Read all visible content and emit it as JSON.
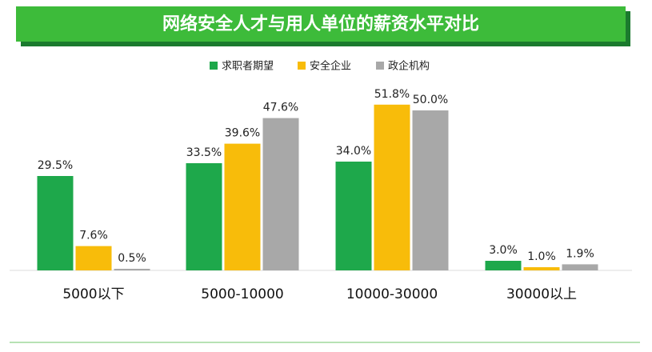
{
  "chart_data": {
    "type": "bar",
    "title": "网络安全人才与用人单位的薪资水平对比",
    "categories": [
      "5000以下",
      "5000-10000",
      "10000-30000",
      "30000以上"
    ],
    "series": [
      {
        "name": "求职者期望",
        "color": "#1ea84b",
        "values": [
          29.5,
          33.5,
          34.0,
          3.0
        ],
        "value_labels": [
          "29.5%",
          "33.5%",
          "34.0%",
          "3.0%"
        ]
      },
      {
        "name": "安全企业",
        "color": "#f8bc0a",
        "values": [
          7.6,
          39.6,
          51.8,
          1.0
        ],
        "value_labels": [
          "7.6%",
          "39.6%",
          "51.8%",
          "1.0%"
        ]
      },
      {
        "name": "政企机构",
        "color": "#a8a8a8",
        "values": [
          0.5,
          47.6,
          50.0,
          1.9
        ],
        "value_labels": [
          "0.5%",
          "47.6%",
          "50.0%",
          "1.9%"
        ]
      }
    ]
  }
}
